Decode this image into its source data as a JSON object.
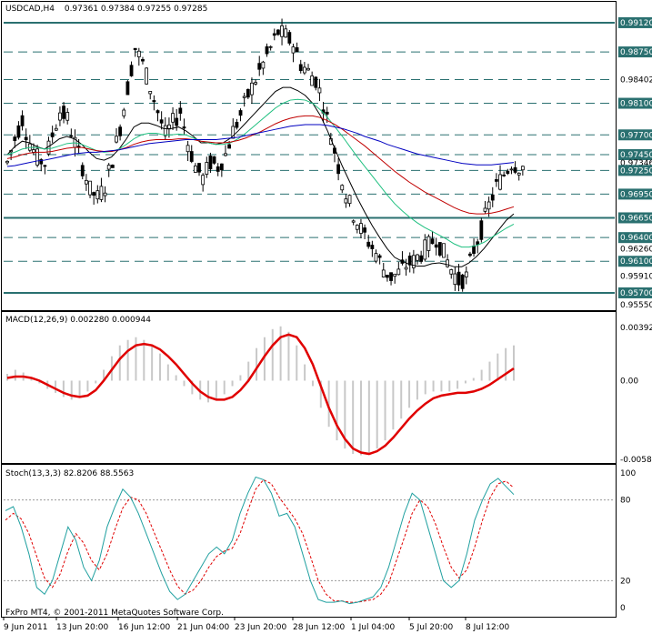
{
  "header": {
    "symbol_tf": "USDCAD,H4",
    "ohlc": "0.97361 0.97384 0.97255 0.97285"
  },
  "footer": {
    "copyright": "FxPro MT4, © 2001-2011 MetaQuotes Software Corp."
  },
  "colors": {
    "up_candle": "#000000",
    "ma_black": "#000000",
    "ma_red": "#c00000",
    "ma_blue": "#0000c0",
    "ma_green": "#20c080",
    "level_line": "#2a7070",
    "macd_hist": "#c8c8c8",
    "macd_signal": "#e00000",
    "stoch_main": "#20a0a0",
    "stoch_signal": "#e00000"
  },
  "chart_data": [
    {
      "type": "candlestick",
      "title": "USDCAD,H4",
      "ylim": [
        0.9555,
        0.992
      ],
      "x_ticks": [
        "9 Jun 2011",
        "13 Jun 20:00",
        "16 Jun 12:00",
        "21 Jun 04:00",
        "23 Jun 20:00",
        "28 Jun 12:00",
        "1 Jul 04:00",
        "5 Jul 20:00",
        "8 Jul 12:00"
      ],
      "y_ticks": [
        "0.99120",
        "0.98750",
        "0.98402",
        "0.98100",
        "0.97700",
        "0.97450",
        "0.97346",
        "0.97250",
        "0.96950",
        "0.96650",
        "0.96400",
        "0.96260",
        "0.96100",
        "0.95910",
        "0.95700",
        "0.95550"
      ],
      "levels": [
        0.9912,
        0.9875,
        0.984,
        0.981,
        0.977,
        0.9745,
        0.9725,
        0.9695,
        0.9665,
        0.964,
        0.961,
        0.957
      ],
      "solid_levels": [
        0.9912,
        0.9665,
        0.957
      ],
      "current_price": 0.97346,
      "price_path": [
        0.9735,
        0.9765,
        0.979,
        0.976,
        0.974,
        0.9735,
        0.977,
        0.98,
        0.979,
        0.976,
        0.973,
        0.97,
        0.969,
        0.9705,
        0.974,
        0.978,
        0.983,
        0.988,
        0.986,
        0.983,
        0.98,
        0.977,
        0.9785,
        0.98,
        0.976,
        0.973,
        0.9715,
        0.9735,
        0.973,
        0.9745,
        0.9775,
        0.9795,
        0.982,
        0.984,
        0.986,
        0.988,
        0.99,
        0.9895,
        0.9885,
        0.986,
        0.985,
        0.984,
        0.981,
        0.977,
        0.973,
        0.9695,
        0.967,
        0.965,
        0.9635,
        0.962,
        0.96,
        0.959,
        0.9595,
        0.9605,
        0.961,
        0.962,
        0.963,
        0.964,
        0.962,
        0.96,
        0.9585,
        0.959,
        0.9625,
        0.965,
        0.968,
        0.9705,
        0.972,
        0.9735,
        0.973
      ],
      "ma_series": [
        {
          "color": "#000000",
          "values": [
            0.9745,
            0.9755,
            0.9762,
            0.976,
            0.9755,
            0.9752,
            0.9758,
            0.9765,
            0.9768,
            0.9765,
            0.9758,
            0.9748,
            0.974,
            0.9738,
            0.9742,
            0.9752,
            0.9765,
            0.978,
            0.9785,
            0.9785,
            0.9782,
            0.9778,
            0.9778,
            0.978,
            0.9775,
            0.9768,
            0.976,
            0.976,
            0.9758,
            0.976,
            0.9766,
            0.9775,
            0.9785,
            0.9795,
            0.9805,
            0.9815,
            0.9825,
            0.983,
            0.983,
            0.9826,
            0.982,
            0.981,
            0.9795,
            0.9775,
            0.9752,
            0.973,
            0.971,
            0.969,
            0.9672,
            0.9655,
            0.964,
            0.9626,
            0.9615,
            0.961,
            0.9606,
            0.9604,
            0.9604,
            0.9607,
            0.9608,
            0.9606,
            0.9603,
            0.9603,
            0.9608,
            0.9616,
            0.9626,
            0.9638,
            0.965,
            0.9662,
            0.967
          ]
        },
        {
          "color": "#20c080",
          "values": [
            0.9745,
            0.9748,
            0.9752,
            0.9754,
            0.9754,
            0.9752,
            0.9753,
            0.9756,
            0.9759,
            0.976,
            0.9758,
            0.9754,
            0.975,
            0.9748,
            0.9749,
            0.9752,
            0.9758,
            0.9765,
            0.977,
            0.9772,
            0.9772,
            0.977,
            0.977,
            0.9771,
            0.977,
            0.9766,
            0.9762,
            0.976,
            0.9758,
            0.9758,
            0.976,
            0.9765,
            0.9772,
            0.978,
            0.9788,
            0.9796,
            0.9804,
            0.981,
            0.9814,
            0.9815,
            0.9814,
            0.981,
            0.9802,
            0.9792,
            0.978,
            0.9768,
            0.9755,
            0.9742,
            0.973,
            0.9718,
            0.9706,
            0.9694,
            0.9683,
            0.9674,
            0.9666,
            0.9659,
            0.9653,
            0.9648,
            0.9643,
            0.9638,
            0.9632,
            0.9628,
            0.9628,
            0.963,
            0.9634,
            0.964,
            0.9646,
            0.9652,
            0.9657
          ]
        },
        {
          "color": "#c00000",
          "values": [
            0.974,
            0.9742,
            0.9745,
            0.9747,
            0.9748,
            0.9748,
            0.9749,
            0.9751,
            0.9753,
            0.9754,
            0.9754,
            0.9752,
            0.975,
            0.9749,
            0.9749,
            0.9751,
            0.9754,
            0.9758,
            0.9761,
            0.9763,
            0.9764,
            0.9764,
            0.9764,
            0.9765,
            0.9765,
            0.9764,
            0.9762,
            0.9761,
            0.976,
            0.976,
            0.9761,
            0.9763,
            0.9766,
            0.977,
            0.9774,
            0.9779,
            0.9784,
            0.9788,
            0.9791,
            0.9793,
            0.9794,
            0.9794,
            0.9792,
            0.9788,
            0.9783,
            0.9777,
            0.977,
            0.9763,
            0.9756,
            0.9748,
            0.974,
            0.9732,
            0.9724,
            0.9717,
            0.971,
            0.9704,
            0.9698,
            0.9693,
            0.9688,
            0.9683,
            0.9678,
            0.9674,
            0.9671,
            0.967,
            0.967,
            0.9671,
            0.9673,
            0.9676,
            0.9679
          ]
        },
        {
          "color": "#0000c0",
          "values": [
            0.973,
            0.9731,
            0.9733,
            0.9735,
            0.9737,
            0.9738,
            0.974,
            0.9742,
            0.9744,
            0.9746,
            0.9747,
            0.9748,
            0.9748,
            0.9749,
            0.975,
            0.9751,
            0.9753,
            0.9755,
            0.9757,
            0.9759,
            0.976,
            0.9761,
            0.9762,
            0.9763,
            0.9764,
            0.9764,
            0.9764,
            0.9764,
            0.9764,
            0.9765,
            0.9766,
            0.9767,
            0.9769,
            0.9771,
            0.9773,
            0.9775,
            0.9777,
            0.9779,
            0.9781,
            0.9782,
            0.9783,
            0.9783,
            0.9783,
            0.9782,
            0.978,
            0.9778,
            0.9775,
            0.9772,
            0.9768,
            0.9765,
            0.9762,
            0.9758,
            0.9755,
            0.9752,
            0.9749,
            0.9746,
            0.9744,
            0.9742,
            0.974,
            0.9738,
            0.9736,
            0.9734,
            0.9733,
            0.9732,
            0.9732,
            0.9732,
            0.9733,
            0.9734,
            0.9735
          ]
        }
      ]
    },
    {
      "type": "bar",
      "title": "MACD(12,26,9) 0.002280 0.000944",
      "ylim": [
        -0.0058,
        0.00392
      ],
      "y_ticks": [
        "0.00392",
        "0.00",
        "-0.0058"
      ],
      "histogram": [
        0.0005,
        0.0008,
        0.0006,
        0.0002,
        -0.0002,
        -0.0006,
        -0.0009,
        -0.0012,
        -0.0014,
        -0.0012,
        -0.0008,
        -0.0002,
        0.0008,
        0.0018,
        0.0026,
        0.003,
        0.0032,
        0.003,
        0.0026,
        0.002,
        0.0012,
        0.0004,
        -0.0004,
        -0.001,
        -0.0014,
        -0.0016,
        -0.0014,
        -0.001,
        -0.0004,
        0.0004,
        0.0014,
        0.0024,
        0.0032,
        0.0038,
        0.004,
        0.0036,
        0.0026,
        0.0012,
        -0.0004,
        -0.002,
        -0.0034,
        -0.0044,
        -0.005,
        -0.0054,
        -0.0055,
        -0.0054,
        -0.005,
        -0.0044,
        -0.0036,
        -0.0028,
        -0.002,
        -0.0014,
        -0.001,
        -0.0008,
        -0.0008,
        -0.0008,
        -0.0006,
        -0.0002,
        0.0002,
        0.0008,
        0.0014,
        0.002,
        0.0024,
        0.0026
      ],
      "signal": [
        0.0002,
        0.0003,
        0.0003,
        0.0002,
        0.0,
        -0.0003,
        -0.0006,
        -0.0009,
        -0.0011,
        -0.0012,
        -0.0011,
        -0.0007,
        0.0,
        0.0008,
        0.0016,
        0.0022,
        0.0026,
        0.0027,
        0.0026,
        0.0023,
        0.0018,
        0.0012,
        0.0005,
        -0.0002,
        -0.0008,
        -0.0012,
        -0.0014,
        -0.0014,
        -0.0012,
        -0.0007,
        0.0,
        0.0009,
        0.0018,
        0.0026,
        0.0032,
        0.0034,
        0.0032,
        0.0024,
        0.0012,
        -0.0004,
        -0.002,
        -0.0033,
        -0.0043,
        -0.005,
        -0.0053,
        -0.0054,
        -0.0052,
        -0.0048,
        -0.0042,
        -0.0035,
        -0.0028,
        -0.0022,
        -0.0017,
        -0.0013,
        -0.0011,
        -0.001,
        -0.0009,
        -0.0009,
        -0.0008,
        -0.0006,
        -0.0003,
        0.0001,
        0.0005,
        0.0009
      ]
    },
    {
      "type": "line",
      "title": "Stoch(13,3,3) 82.8206 88.5563",
      "ylim": [
        0,
        100
      ],
      "y_ticks": [
        "100",
        "80",
        "20",
        "0"
      ],
      "levels": [
        80,
        20
      ],
      "main": [
        72,
        75,
        60,
        40,
        15,
        10,
        20,
        40,
        60,
        50,
        30,
        20,
        35,
        60,
        75,
        88,
        82,
        70,
        55,
        40,
        25,
        12,
        6,
        10,
        20,
        30,
        40,
        45,
        40,
        50,
        70,
        85,
        97,
        95,
        85,
        68,
        70,
        60,
        40,
        20,
        6,
        4,
        4,
        5,
        3,
        4,
        6,
        8,
        15,
        30,
        50,
        70,
        85,
        80,
        60,
        40,
        20,
        15,
        20,
        40,
        65,
        80,
        92,
        96,
        90,
        84
      ],
      "signal": [
        65,
        70,
        66,
        55,
        38,
        22,
        15,
        25,
        42,
        55,
        48,
        35,
        28,
        40,
        58,
        74,
        82,
        80,
        70,
        56,
        42,
        28,
        16,
        10,
        13,
        20,
        30,
        38,
        42,
        44,
        55,
        72,
        88,
        95,
        92,
        82,
        74,
        66,
        55,
        38,
        20,
        10,
        5,
        5,
        4,
        4,
        5,
        6,
        10,
        18,
        35,
        52,
        70,
        80,
        75,
        62,
        45,
        30,
        22,
        28,
        45,
        65,
        82,
        92,
        94,
        89
      ]
    }
  ]
}
